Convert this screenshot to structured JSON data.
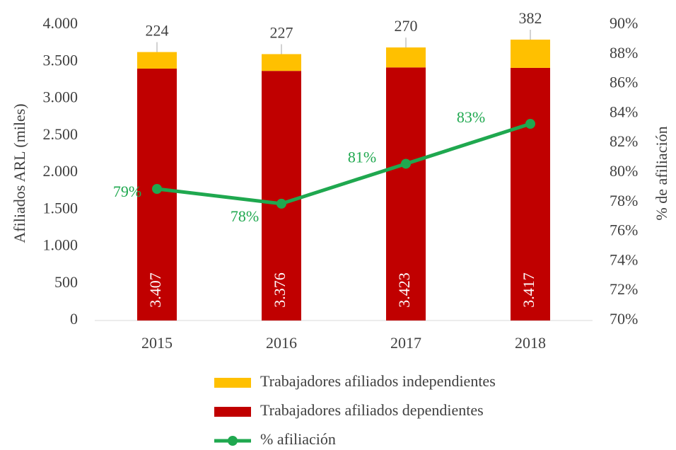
{
  "chart_data": {
    "type": "bar",
    "categories": [
      "2015",
      "2016",
      "2017",
      "2018"
    ],
    "y_label": "Afiliados ARL (miles)",
    "y2_label": "% de afiliación",
    "ylim": [
      0,
      4000
    ],
    "yticks": [
      0,
      500,
      {
        "value": 1000,
        "label": "1.000"
      },
      {
        "value": 1500,
        "label": "1.500"
      },
      {
        "value": 2000,
        "label": "2.000"
      },
      {
        "value": 2500,
        "label": "2.500"
      },
      {
        "value": 3000,
        "label": "3.000"
      },
      {
        "value": 3500,
        "label": "3.500"
      },
      {
        "value": 4000,
        "label": "4.000"
      }
    ],
    "y2lim": [
      70,
      90
    ],
    "y2ticks": [
      {
        "value": 70,
        "label": "70%"
      },
      {
        "value": 72,
        "label": "72%"
      },
      {
        "value": 74,
        "label": "74%"
      },
      {
        "value": 76,
        "label": "76%"
      },
      {
        "value": 78,
        "label": "78%"
      },
      {
        "value": 80,
        "label": "80%"
      },
      {
        "value": 82,
        "label": "82%"
      },
      {
        "value": 84,
        "label": "84%"
      },
      {
        "value": 86,
        "label": "86%"
      },
      {
        "value": 88,
        "label": "88%"
      },
      {
        "value": 90,
        "label": "90%"
      }
    ],
    "stacked": true,
    "series": [
      {
        "name": "Trabajadores afiliados dependientes",
        "color": "#c00000",
        "values": [
          3407,
          3376,
          3423,
          3417
        ],
        "value_labels": [
          "3.407",
          "3.376",
          "3.423",
          "3.417"
        ]
      },
      {
        "name": "Trabajadores afiliados independientes",
        "color": "#ffc000",
        "values": [
          224,
          227,
          270,
          382
        ]
      },
      {
        "name": "% afiliación",
        "type": "line",
        "axis": "y2",
        "color": "#1fa84f",
        "values": [
          78.9,
          77.9,
          80.6,
          83.3
        ],
        "value_labels": [
          "79%",
          "78%",
          "81%",
          "83%"
        ]
      }
    ]
  }
}
